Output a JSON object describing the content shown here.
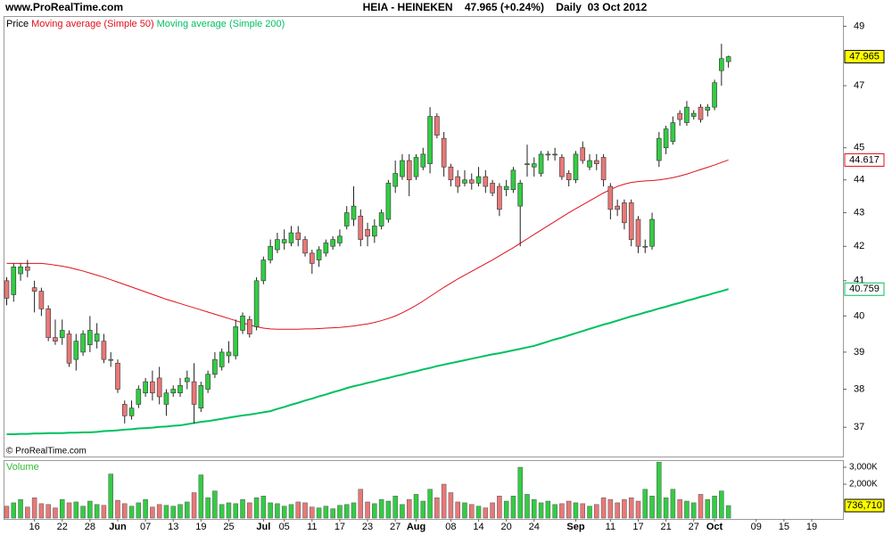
{
  "chart_data": {
    "type": "candlestick",
    "site": "www.ProRealTime.com",
    "title": "HEIA - HEINEKEN    47.965 (+0.24%)    Daily  03 Oct 2012",
    "copyright": "© ProRealTime.com",
    "legend_prefix": "Price",
    "log_scale": true,
    "up_color": "#33cc44",
    "down_color": "#e87878",
    "last_price_color": "#ffff00",
    "categories": [
      null,
      null,
      null,
      null,
      "16",
      null,
      null,
      null,
      "22",
      null,
      null,
      null,
      "28",
      null,
      null,
      null,
      "Jun",
      null,
      null,
      null,
      "07",
      null,
      null,
      null,
      "13",
      null,
      null,
      null,
      "19",
      null,
      null,
      null,
      "25",
      null,
      null,
      null,
      null,
      "Jul",
      null,
      null,
      "05",
      null,
      null,
      null,
      "11",
      null,
      null,
      null,
      "17",
      null,
      null,
      null,
      "23",
      null,
      null,
      null,
      "27",
      null,
      null,
      "Aug",
      null,
      null,
      null,
      null,
      "08",
      null,
      null,
      null,
      "14",
      null,
      null,
      null,
      "20",
      null,
      null,
      null,
      "24",
      null,
      null,
      null,
      null,
      null,
      "Sep",
      null,
      null,
      null,
      null,
      "11",
      null,
      null,
      null,
      "17",
      null,
      null,
      null,
      "21",
      null,
      null,
      null,
      "27",
      null,
      null,
      "Oct",
      null,
      null,
      null,
      null,
      null,
      "09",
      null,
      null,
      null,
      "15",
      null,
      null,
      null,
      "19"
    ],
    "open": [
      41.0,
      40.6,
      41.2,
      41.4,
      40.8,
      40.7,
      40.2,
      39.4,
      39.4,
      39.5,
      38.8,
      39.0,
      39.2,
      39.3,
      39.3,
      38.8,
      38.7,
      37.6,
      37.3,
      37.6,
      37.9,
      38.2,
      38.3,
      37.6,
      37.9,
      37.9,
      38.2,
      38.2,
      37.5,
      38.0,
      38.4,
      38.6,
      38.9,
      38.9,
      39.6,
      39.9,
      39.7,
      41.0,
      41.6,
      41.9,
      42.1,
      42.1,
      42.4,
      42.2,
      41.8,
      41.6,
      41.8,
      42.0,
      42.1,
      42.6,
      42.8,
      42.9,
      42.5,
      42.3,
      42.6,
      42.8,
      43.8,
      44.1,
      44.6,
      44.1,
      44.4,
      44.5,
      46.0,
      45.3,
      44.4,
      44.1,
      43.9,
      44.0,
      43.9,
      44.1,
      43.9,
      43.8,
      43.7,
      43.7,
      43.2,
      44.5,
      44.4,
      44.2,
      44.8,
      44.8,
      44.7,
      44.2,
      44.0,
      45.0,
      44.4,
      44.6,
      44.7,
      43.8,
      43.2,
      43.3,
      43.3,
      42.8,
      42.0,
      42.0,
      44.6,
      45.0,
      45.2,
      46.1,
      45.8,
      46.0,
      46.3,
      46.2,
      46.3,
      47.5,
      47.8,
      null,
      null,
      null,
      null,
      null,
      null,
      null,
      null,
      null,
      null,
      null,
      null
    ],
    "high": [
      41.1,
      41.5,
      41.5,
      41.6,
      41.0,
      40.8,
      40.3,
      39.9,
      39.9,
      39.6,
      39.5,
      39.6,
      40.0,
      39.8,
      39.5,
      39.0,
      38.8,
      37.7,
      37.7,
      38.1,
      38.3,
      38.5,
      38.6,
      38.0,
      38.1,
      38.3,
      38.5,
      38.7,
      38.2,
      38.5,
      39.0,
      39.1,
      39.3,
      39.9,
      40.1,
      40.0,
      41.1,
      41.7,
      42.2,
      42.4,
      42.5,
      42.6,
      42.6,
      42.3,
      41.9,
      42.0,
      42.2,
      42.3,
      42.5,
      43.2,
      43.8,
      43.1,
      42.7,
      42.8,
      43.1,
      44.0,
      44.6,
      44.8,
      44.8,
      44.8,
      45.0,
      46.3,
      46.1,
      45.5,
      44.5,
      44.3,
      44.3,
      44.2,
      44.4,
      44.3,
      44.0,
      43.9,
      44.0,
      44.4,
      44.0,
      45.1,
      44.7,
      44.9,
      44.9,
      45.0,
      44.8,
      44.3,
      44.9,
      45.2,
      44.8,
      44.8,
      44.8,
      43.9,
      43.4,
      43.4,
      43.4,
      42.9,
      42.2,
      43.0,
      45.5,
      45.7,
      46.0,
      46.2,
      46.5,
      46.2,
      46.4,
      46.4,
      47.2,
      48.4,
      48.0,
      null,
      null,
      null,
      null,
      null,
      null,
      null,
      null,
      null,
      null,
      null,
      null
    ],
    "low": [
      40.3,
      40.4,
      41.0,
      41.1,
      40.1,
      40.0,
      39.3,
      39.2,
      39.2,
      38.6,
      38.5,
      38.9,
      39.0,
      39.1,
      38.7,
      38.6,
      37.9,
      37.1,
      37.2,
      37.5,
      37.8,
      37.7,
      37.6,
      37.3,
      37.8,
      37.8,
      38.0,
      37.1,
      37.4,
      37.9,
      38.3,
      38.5,
      38.7,
      38.8,
      39.5,
      39.4,
      39.6,
      40.9,
      41.5,
      41.8,
      41.9,
      42.0,
      42.0,
      41.7,
      41.2,
      41.4,
      41.7,
      41.9,
      42.0,
      42.5,
      42.6,
      42.0,
      42.0,
      42.1,
      42.5,
      42.7,
      43.6,
      44.0,
      43.5,
      44.0,
      44.3,
      44.2,
      45.3,
      44.1,
      43.8,
      43.6,
      43.8,
      43.7,
      43.8,
      43.6,
      43.5,
      42.9,
      43.5,
      43.6,
      42.0,
      44.1,
      44.1,
      44.1,
      44.6,
      44.6,
      44.0,
      43.8,
      43.9,
      44.5,
      44.3,
      44.3,
      43.8,
      42.8,
      42.9,
      42.5,
      42.0,
      41.8,
      41.8,
      41.9,
      44.4,
      44.8,
      45.1,
      45.7,
      45.7,
      45.9,
      45.8,
      46.0,
      46.2,
      47.0,
      47.6,
      null,
      null,
      null,
      null,
      null,
      null,
      null,
      null,
      null,
      null,
      null,
      null
    ],
    "close": [
      40.5,
      41.4,
      41.4,
      41.3,
      40.7,
      40.2,
      39.4,
      39.3,
      39.6,
      38.7,
      39.3,
      39.5,
      39.6,
      39.5,
      38.8,
      38.8,
      38.0,
      37.3,
      37.5,
      38.0,
      38.2,
      37.9,
      37.8,
      37.9,
      38.0,
      38.1,
      38.3,
      37.6,
      38.1,
      38.4,
      38.8,
      39.0,
      39.0,
      39.7,
      40.0,
      39.5,
      41.0,
      41.6,
      42.0,
      42.2,
      42.2,
      42.4,
      42.2,
      41.8,
      41.5,
      41.9,
      42.1,
      42.2,
      42.3,
      43.0,
      43.2,
      42.2,
      42.3,
      42.6,
      43.0,
      43.9,
      44.2,
      44.6,
      44.0,
      44.7,
      44.8,
      46.0,
      45.4,
      44.4,
      44.0,
      43.8,
      44.0,
      43.9,
      44.1,
      43.8,
      43.6,
      43.1,
      43.8,
      44.3,
      43.9,
      44.5,
      44.5,
      44.8,
      44.8,
      44.8,
      44.1,
      44.0,
      44.8,
      44.6,
      44.6,
      44.5,
      44.0,
      43.1,
      43.1,
      42.7,
      42.2,
      42.0,
      42.0,
      42.8,
      45.3,
      45.6,
      45.8,
      45.9,
      46.3,
      46.1,
      45.9,
      46.3,
      47.1,
      47.9,
      47.965,
      null,
      null,
      null,
      null,
      null,
      null,
      null,
      null,
      null,
      null,
      null,
      null
    ],
    "series": [
      {
        "name": "Moving average (Simple 50)",
        "color": "#e0101c",
        "values": [
          41.5,
          41.5,
          41.5,
          41.5,
          41.5,
          41.5,
          41.48,
          41.45,
          41.42,
          41.38,
          41.33,
          41.28,
          41.22,
          41.16,
          41.1,
          41.03,
          40.96,
          40.89,
          40.82,
          40.75,
          40.68,
          40.61,
          40.54,
          40.47,
          40.41,
          40.35,
          40.29,
          40.23,
          40.17,
          40.11,
          40.05,
          39.99,
          39.93,
          39.87,
          39.81,
          39.75,
          39.7,
          39.66,
          39.64,
          39.63,
          39.63,
          39.63,
          39.63,
          39.64,
          39.64,
          39.65,
          39.66,
          39.67,
          39.68,
          39.7,
          39.72,
          39.75,
          39.78,
          39.82,
          39.87,
          39.93,
          40.0,
          40.09,
          40.19,
          40.3,
          40.42,
          40.55,
          40.68,
          40.81,
          40.93,
          41.05,
          41.16,
          41.27,
          41.38,
          41.49,
          41.6,
          41.72,
          41.84,
          41.96,
          42.09,
          42.22,
          42.35,
          42.48,
          42.61,
          42.74,
          42.87,
          43.0,
          43.12,
          43.24,
          43.36,
          43.48,
          43.6,
          43.7,
          43.8,
          43.87,
          43.92,
          43.95,
          43.97,
          43.98,
          44.0,
          44.03,
          44.07,
          44.12,
          44.18,
          44.25,
          44.32,
          44.39,
          44.46,
          44.54,
          44.617,
          null,
          null,
          null,
          null,
          null,
          null,
          null,
          null,
          null,
          null,
          null,
          null
        ]
      },
      {
        "name": "Moving average (Simple 200)",
        "color": "#00c060",
        "values": [
          36.82,
          36.82,
          36.83,
          36.83,
          36.84,
          36.84,
          36.85,
          36.85,
          36.85,
          36.86,
          36.86,
          36.87,
          36.87,
          36.88,
          36.9,
          36.91,
          36.92,
          36.94,
          36.95,
          36.97,
          36.98,
          36.99,
          37.01,
          37.02,
          37.04,
          37.05,
          37.08,
          37.11,
          37.14,
          37.16,
          37.19,
          37.22,
          37.25,
          37.28,
          37.31,
          37.33,
          37.36,
          37.39,
          37.42,
          37.48,
          37.53,
          37.59,
          37.64,
          37.7,
          37.75,
          37.81,
          37.86,
          37.92,
          37.97,
          38.03,
          38.08,
          38.12,
          38.17,
          38.21,
          38.26,
          38.3,
          38.35,
          38.39,
          38.44,
          38.48,
          38.53,
          38.57,
          38.62,
          38.66,
          38.7,
          38.74,
          38.78,
          38.82,
          38.86,
          38.9,
          38.94,
          38.97,
          39.01,
          39.05,
          39.09,
          39.13,
          39.17,
          39.23,
          39.29,
          39.35,
          39.4,
          39.46,
          39.52,
          39.58,
          39.64,
          39.7,
          39.76,
          39.81,
          39.87,
          39.93,
          39.99,
          40.04,
          40.1,
          40.15,
          40.21,
          40.26,
          40.32,
          40.37,
          40.43,
          40.48,
          40.54,
          40.59,
          40.65,
          40.7,
          40.759,
          null,
          null,
          null,
          null,
          null,
          null,
          null,
          null,
          null,
          null,
          null,
          null
        ]
      }
    ],
    "ylim": [
      36.25,
      49.35
    ],
    "yticks": [
      37,
      38,
      39,
      40,
      41,
      42,
      43,
      44,
      45,
      47,
      49
    ],
    "volume": {
      "label": "Volume",
      "values": [
        700000,
        900000,
        1100000,
        650000,
        1200000,
        850000,
        800000,
        600000,
        1100000,
        900000,
        950000,
        700000,
        1000000,
        800000,
        750000,
        2600000,
        1050000,
        850000,
        700000,
        900000,
        1100000,
        650000,
        800000,
        750000,
        700000,
        800000,
        950000,
        1500000,
        2550000,
        1200000,
        1600000,
        800000,
        900000,
        850000,
        1100000,
        900000,
        1200000,
        1300000,
        900000,
        850000,
        700000,
        800000,
        950000,
        900000,
        650000,
        600000,
        700000,
        550000,
        750000,
        800000,
        900000,
        1700000,
        950000,
        850000,
        1100000,
        1000000,
        1300000,
        800000,
        1100000,
        1400000,
        1000000,
        1700000,
        1200000,
        2000000,
        1500000,
        950000,
        900000,
        800000,
        700000,
        600000,
        900000,
        1300000,
        1000000,
        1300000,
        3000000,
        1400000,
        1100000,
        900000,
        1000000,
        800000,
        850000,
        1000000,
        900000,
        850000,
        700000,
        800000,
        1200000,
        1100000,
        900000,
        1100000,
        1200000,
        1000000,
        1700000,
        1300000,
        3300000,
        1200000,
        1700000,
        1100000,
        1000000,
        900000,
        1400000,
        1100000,
        1300000,
        1600000,
        736710,
        null,
        null,
        null,
        null,
        null,
        null,
        null,
        null,
        null,
        null,
        null,
        null
      ],
      "value_labels": {
        "104": "736,710"
      },
      "ylim": [
        0,
        3370000
      ],
      "yticks": [
        {
          "value": 2000000,
          "label": "2,000K"
        },
        {
          "value": 3000000,
          "label": "3,000K"
        }
      ]
    }
  }
}
